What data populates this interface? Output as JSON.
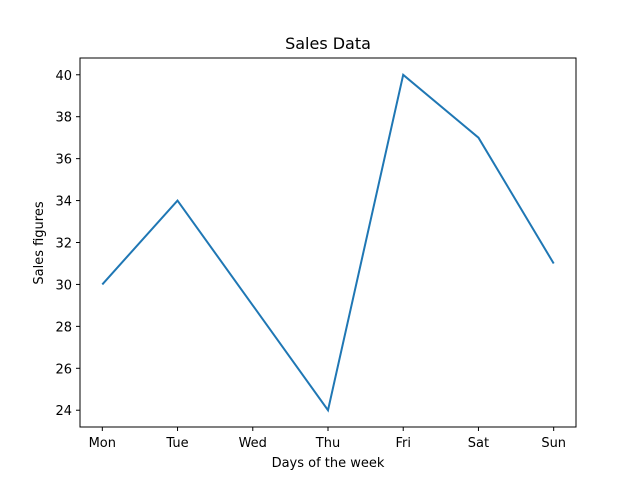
{
  "chart_data": {
    "type": "line",
    "title": "Sales Data",
    "xlabel": "Days of the week",
    "ylabel": "Sales figures",
    "categories": [
      "Mon",
      "Tue",
      "Wed",
      "Thu",
      "Fri",
      "Sat",
      "Sun"
    ],
    "series": [
      {
        "values": [
          30,
          34,
          29,
          24,
          40,
          37,
          31
        ],
        "color": "#1f77b4"
      }
    ],
    "ylim": [
      23.2,
      40.8
    ],
    "yticks": [
      24,
      26,
      28,
      30,
      32,
      34,
      36,
      38,
      40
    ],
    "grid": false,
    "legend": "none"
  }
}
